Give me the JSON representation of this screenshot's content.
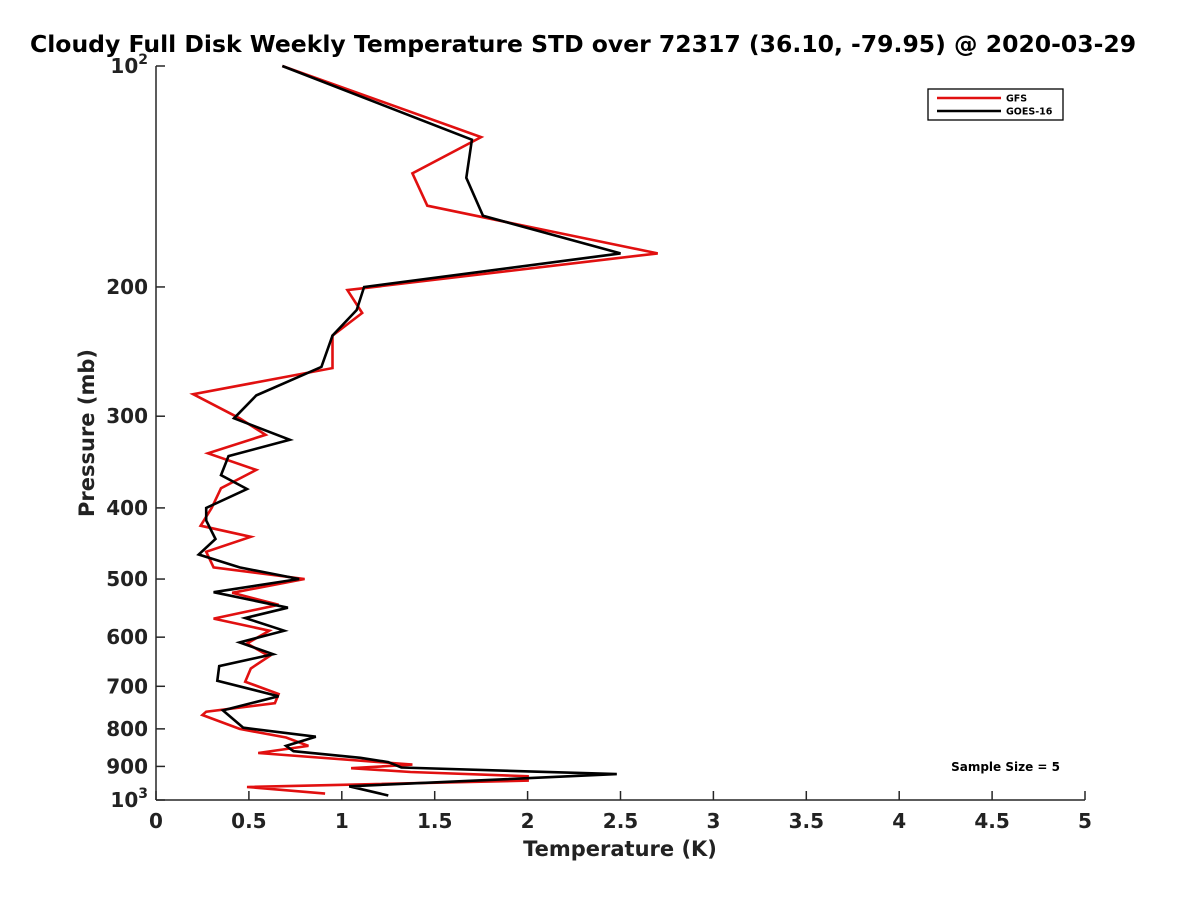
{
  "chart_data": {
    "type": "line",
    "title": "Cloudy Full Disk Weekly Temperature STD over 72317 (36.10, -79.95) @ 2020-03-29",
    "xlabel": "Temperature (K)",
    "ylabel": "Pressure (mb)",
    "xlim": [
      0,
      5
    ],
    "ylim": [
      100,
      1000
    ],
    "y_scale": "log",
    "y_reversed": true,
    "x_ticks": [
      0,
      0.5,
      1,
      1.5,
      2,
      2.5,
      3,
      3.5,
      4,
      4.5,
      5
    ],
    "x_tick_labels": [
      "0",
      "0.5",
      "1",
      "1.5",
      "2",
      "2.5",
      "3",
      "3.5",
      "4",
      "4.5",
      "5"
    ],
    "y_ticks": [
      100,
      200,
      300,
      400,
      500,
      600,
      700,
      800,
      900,
      1000
    ],
    "y_tick_labels": [
      {
        "base": "10",
        "exp": "2"
      },
      {
        "base": "200"
      },
      {
        "base": "300"
      },
      {
        "base": "400"
      },
      {
        "base": "500"
      },
      {
        "base": "600"
      },
      {
        "base": "700"
      },
      {
        "base": "800"
      },
      {
        "base": "900"
      },
      {
        "base": "10",
        "exp": "3"
      }
    ],
    "grid": false,
    "legend_position": "top-right",
    "annotation": "Sample Size = 5",
    "series": [
      {
        "name": "GFS",
        "color": "#e11010",
        "points": [
          [
            0.68,
            100
          ],
          [
            1.75,
            125
          ],
          [
            1.38,
            140
          ],
          [
            1.46,
            155
          ],
          [
            2.7,
            180
          ],
          [
            1.03,
            202
          ],
          [
            1.11,
            217
          ],
          [
            0.95,
            233
          ],
          [
            0.95,
            258
          ],
          [
            0.2,
            280
          ],
          [
            0.45,
            302
          ],
          [
            0.59,
            318
          ],
          [
            0.28,
            337
          ],
          [
            0.54,
            355
          ],
          [
            0.35,
            376
          ],
          [
            0.3,
            400
          ],
          [
            0.24,
            423
          ],
          [
            0.51,
            438
          ],
          [
            0.27,
            459
          ],
          [
            0.31,
            482
          ],
          [
            0.8,
            500
          ],
          [
            0.41,
            522
          ],
          [
            0.66,
            542
          ],
          [
            0.31,
            566
          ],
          [
            0.61,
            588
          ],
          [
            0.49,
            612
          ],
          [
            0.61,
            637
          ],
          [
            0.51,
            662
          ],
          [
            0.48,
            690
          ],
          [
            0.66,
            717
          ],
          [
            0.64,
            738
          ],
          [
            0.27,
            758
          ],
          [
            0.25,
            766
          ],
          [
            0.45,
            800
          ],
          [
            0.7,
            822
          ],
          [
            0.82,
            844
          ],
          [
            0.55,
            863
          ],
          [
            1.38,
            895
          ],
          [
            1.05,
            905
          ],
          [
            1.37,
            916
          ],
          [
            2.0,
            928
          ],
          [
            2.0,
            941
          ],
          [
            0.49,
            960
          ],
          [
            0.91,
            980
          ]
        ]
      },
      {
        "name": "GOES-16",
        "color": "#000000",
        "points": [
          [
            0.68,
            100
          ],
          [
            1.7,
            126
          ],
          [
            1.67,
            142
          ],
          [
            1.76,
            160
          ],
          [
            2.5,
            180
          ],
          [
            1.12,
            200
          ],
          [
            1.08,
            215
          ],
          [
            0.95,
            233
          ],
          [
            0.89,
            257
          ],
          [
            0.54,
            281
          ],
          [
            0.42,
            302
          ],
          [
            0.72,
            323
          ],
          [
            0.39,
            340
          ],
          [
            0.35,
            361
          ],
          [
            0.49,
            377
          ],
          [
            0.27,
            400
          ],
          [
            0.27,
            416
          ],
          [
            0.32,
            441
          ],
          [
            0.23,
            463
          ],
          [
            0.45,
            482
          ],
          [
            0.77,
            500
          ],
          [
            0.31,
            521
          ],
          [
            0.71,
            547
          ],
          [
            0.48,
            565
          ],
          [
            0.69,
            588
          ],
          [
            0.45,
            610
          ],
          [
            0.63,
            633
          ],
          [
            0.34,
            657
          ],
          [
            0.33,
            688
          ],
          [
            0.66,
            722
          ],
          [
            0.36,
            755
          ],
          [
            0.47,
            797
          ],
          [
            0.86,
            820
          ],
          [
            0.7,
            844
          ],
          [
            0.74,
            858
          ],
          [
            1.1,
            876
          ],
          [
            1.25,
            888
          ],
          [
            1.32,
            903
          ],
          [
            2.48,
            922
          ],
          [
            1.04,
            958
          ],
          [
            1.25,
            986
          ]
        ]
      }
    ]
  }
}
